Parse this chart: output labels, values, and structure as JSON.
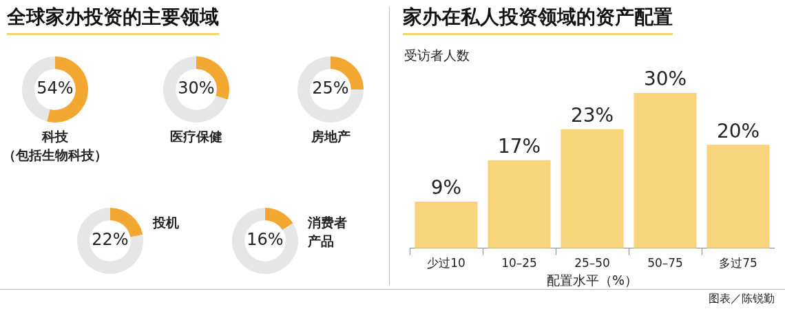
{
  "chart_data": [
    {
      "type": "other",
      "title": "全球家办投资的主要领域"
    },
    {
      "type": "donut",
      "title": "科技（包括生物科技）",
      "categories": [
        null,
        null
      ],
      "values": [
        54,
        46
      ],
      "colors": [
        "#f2a730",
        "#e6e6e6"
      ],
      "value_labels": [
        "54%",
        null
      ]
    },
    {
      "type": "donut",
      "title": "医疗保健",
      "categories": [
        null,
        null
      ],
      "values": [
        30,
        70
      ],
      "colors": [
        "#f2a730",
        "#e6e6e6"
      ],
      "value_labels": [
        "30%",
        null
      ]
    },
    {
      "type": "donut",
      "title": "房地产",
      "categories": [
        null,
        null
      ],
      "values": [
        25,
        75
      ],
      "colors": [
        "#f2a730",
        "#e6e6e6"
      ],
      "value_labels": [
        "25%",
        null
      ]
    },
    {
      "type": "donut",
      "title": "投机",
      "categories": [
        null,
        null
      ],
      "values": [
        22,
        78
      ],
      "colors": [
        "#f2a730",
        "#e6e6e6"
      ],
      "value_labels": [
        "22%",
        null
      ]
    },
    {
      "type": "donut",
      "title": "消费者产品",
      "categories": [
        null,
        null
      ],
      "values": [
        16,
        84
      ],
      "colors": [
        "#f2a730",
        "#e6e6e6"
      ],
      "value_labels": [
        "16%",
        null
      ]
    },
    {
      "type": "bar",
      "title": "家办在私人投资领域的资产配置",
      "ylabel": "受访者人数",
      "xlabel": "配置水平（%）",
      "categories": [
        "少过10",
        "10–25",
        "25–50",
        "50–75",
        "多过75"
      ],
      "values": [
        9,
        17,
        23,
        30,
        20
      ],
      "color": "#f8d57c",
      "value_labels": [
        "9%",
        "17%",
        "23%",
        "30%",
        "20%"
      ],
      "annotations": [
        "图表／陈锐勤"
      ]
    }
  ]
}
